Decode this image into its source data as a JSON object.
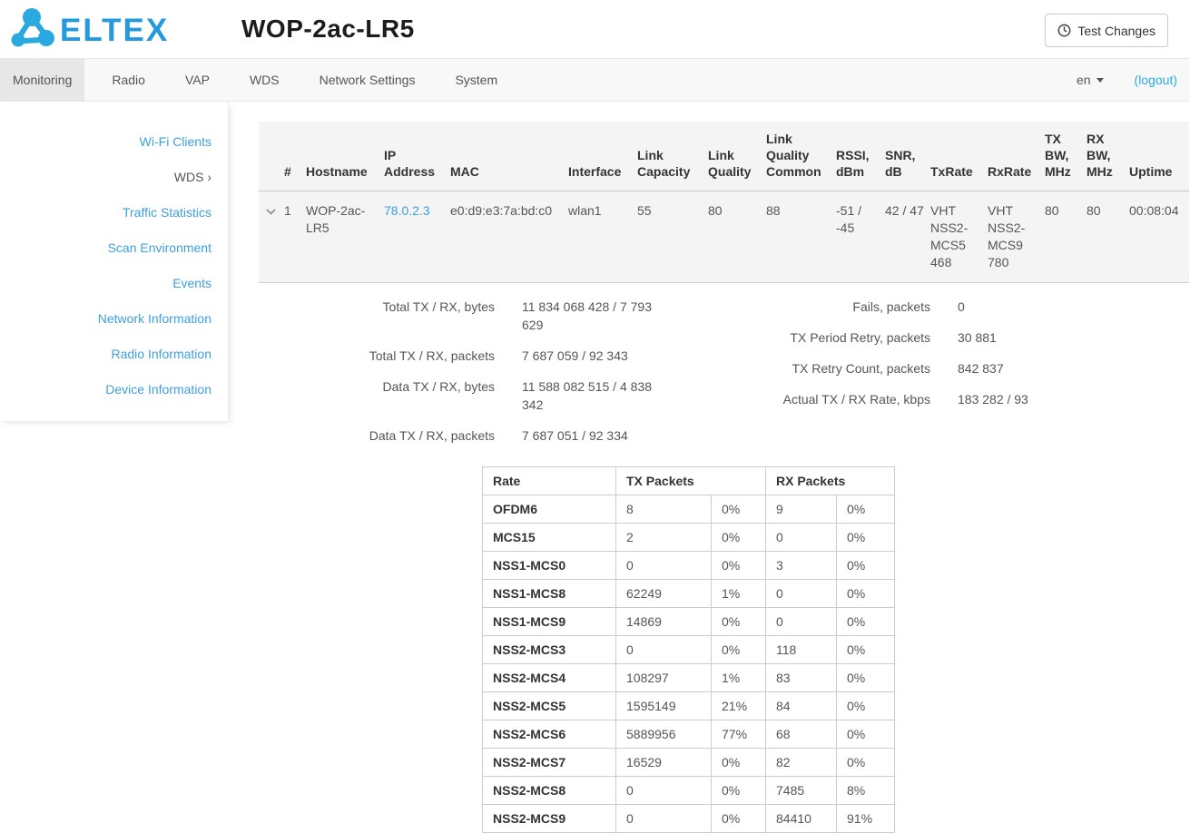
{
  "colors": {
    "accent_blue": "#29a9e0",
    "brand_text_blue": "#2499dc",
    "link_blue": "#3f9fdf",
    "logout_blue": "#29abe2",
    "table_header_bg": "#f4f4f4",
    "active_tab_bg": "#e7e7e7"
  },
  "header": {
    "brand": "ELTEX",
    "title": "WOP-2ac-LR5",
    "test_changes_label": "Test Changes"
  },
  "navbar": {
    "tabs": [
      {
        "label": "Monitoring",
        "active": true
      },
      {
        "label": "Radio",
        "active": false
      },
      {
        "label": "VAP",
        "active": false
      },
      {
        "label": "WDS",
        "active": false
      },
      {
        "label": "Network Settings",
        "active": false
      },
      {
        "label": "System",
        "active": false
      }
    ],
    "language": "en",
    "logout_label": "(logout)"
  },
  "sidebar": {
    "items": [
      {
        "label": "Wi-Fi Clients",
        "active": false,
        "suffix": ""
      },
      {
        "label": "WDS",
        "active": true,
        "suffix": "›"
      },
      {
        "label": "Traffic Statistics",
        "active": false,
        "suffix": ""
      },
      {
        "label": "Scan Environment",
        "active": false,
        "suffix": ""
      },
      {
        "label": "Events",
        "active": false,
        "suffix": ""
      },
      {
        "label": "Network Information",
        "active": false,
        "suffix": ""
      },
      {
        "label": "Radio Information",
        "active": false,
        "suffix": ""
      },
      {
        "label": "Device Information",
        "active": false,
        "suffix": ""
      }
    ]
  },
  "clients_table": {
    "columns": [
      "#",
      "Hostname",
      "IP Address",
      "MAC",
      "Interface",
      "Link Capacity",
      "Link Quality",
      "Link Quality Common",
      "RSSI, dBm",
      "SNR, dB",
      "TxRate",
      "RxRate",
      "TX BW, MHz",
      "RX BW, MHz",
      "Uptime"
    ],
    "row": {
      "cells": [
        "1",
        "WOP-2ac-LR5",
        "78.0.2.3",
        "e0:d9:e3:7a:bd:c0",
        "wlan1",
        "55",
        "80",
        "88",
        "-51 / -45",
        "42 / 47",
        "VHT NSS2- MCS5 468",
        "VHT NSS2- MCS9 780",
        "80",
        "80",
        "00:08:04"
      ]
    }
  },
  "stats": {
    "left": [
      {
        "label": "Total TX / RX, bytes",
        "value": "11 834 068 428 / 7 793 629"
      },
      {
        "label": "Total TX / RX, packets",
        "value": "7 687 059 / 92 343"
      },
      {
        "label": "Data TX / RX, bytes",
        "value": "11 588 082 515 / 4 838 342"
      },
      {
        "label": "Data TX / RX, packets",
        "value": "7 687 051 / 92 334"
      }
    ],
    "right": [
      {
        "label": "Fails, packets",
        "value": "0"
      },
      {
        "label": "TX Period Retry, packets",
        "value": "30 881"
      },
      {
        "label": "TX Retry Count, packets",
        "value": "842 837"
      },
      {
        "label": "Actual TX / RX Rate, kbps",
        "value": "183 282 / 93"
      }
    ]
  },
  "rate_table": {
    "columns": [
      "Rate",
      "TX Packets",
      "RX Packets"
    ],
    "rows": [
      {
        "rate": "OFDM6",
        "tx": "8",
        "tx_pct": "0%",
        "rx": "9",
        "rx_pct": "0%"
      },
      {
        "rate": "MCS15",
        "tx": "2",
        "tx_pct": "0%",
        "rx": "0",
        "rx_pct": "0%"
      },
      {
        "rate": "NSS1-MCS0",
        "tx": "0",
        "tx_pct": "0%",
        "rx": "3",
        "rx_pct": "0%"
      },
      {
        "rate": "NSS1-MCS8",
        "tx": "62249",
        "tx_pct": "1%",
        "rx": "0",
        "rx_pct": "0%"
      },
      {
        "rate": "NSS1-MCS9",
        "tx": "14869",
        "tx_pct": "0%",
        "rx": "0",
        "rx_pct": "0%"
      },
      {
        "rate": "NSS2-MCS3",
        "tx": "0",
        "tx_pct": "0%",
        "rx": "118",
        "rx_pct": "0%"
      },
      {
        "rate": "NSS2-MCS4",
        "tx": "108297",
        "tx_pct": "1%",
        "rx": "83",
        "rx_pct": "0%"
      },
      {
        "rate": "NSS2-MCS5",
        "tx": "1595149",
        "tx_pct": "21%",
        "rx": "84",
        "rx_pct": "0%"
      },
      {
        "rate": "NSS2-MCS6",
        "tx": "5889956",
        "tx_pct": "77%",
        "rx": "68",
        "rx_pct": "0%"
      },
      {
        "rate": "NSS2-MCS7",
        "tx": "16529",
        "tx_pct": "0%",
        "rx": "82",
        "rx_pct": "0%"
      },
      {
        "rate": "NSS2-MCS8",
        "tx": "0",
        "tx_pct": "0%",
        "rx": "7485",
        "rx_pct": "8%"
      },
      {
        "rate": "NSS2-MCS9",
        "tx": "0",
        "tx_pct": "0%",
        "rx": "84410",
        "rx_pct": "91%"
      }
    ]
  }
}
